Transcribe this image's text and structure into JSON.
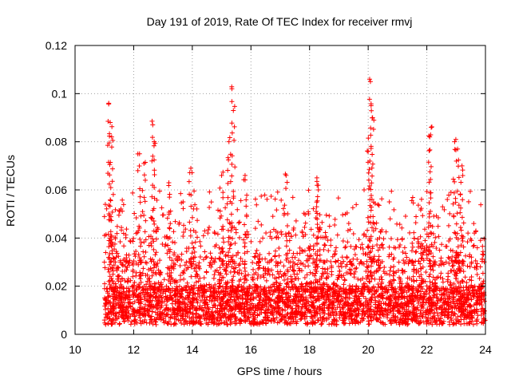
{
  "chart_data": {
    "type": "scatter",
    "title": "Day 191 of 2019, Rate Of TEC Index for receiver rmvj",
    "xlabel": "GPS time / hours",
    "ylabel": "ROTI / TECUs",
    "xlim": [
      10,
      24
    ],
    "ylim": [
      0,
      0.12
    ],
    "xticks": [
      "10",
      "12",
      "14",
      "16",
      "18",
      "20",
      "22",
      "24"
    ],
    "yticks": [
      "0",
      "0.02",
      "0.04",
      "0.06",
      "0.08",
      "0.1",
      "0.12"
    ],
    "grid": true,
    "marker": "+",
    "color": "#ff0000",
    "data_start_hour": 11.0,
    "data_end_hour": 24.0,
    "series": [
      {
        "name": "ROTI",
        "description": "dense scatter of per-satellite ROTI samples; values mostly 0.002-0.03 TECU/s",
        "peaks": [
          {
            "x": 11.15,
            "y": 0.096
          },
          {
            "x": 11.2,
            "y": 0.088
          },
          {
            "x": 11.25,
            "y": 0.082
          },
          {
            "x": 12.2,
            "y": 0.075
          },
          {
            "x": 12.35,
            "y": 0.071
          },
          {
            "x": 12.65,
            "y": 0.087
          },
          {
            "x": 12.7,
            "y": 0.08
          },
          {
            "x": 13.2,
            "y": 0.063
          },
          {
            "x": 13.95,
            "y": 0.069
          },
          {
            "x": 15.0,
            "y": 0.066
          },
          {
            "x": 15.35,
            "y": 0.102
          },
          {
            "x": 15.4,
            "y": 0.093
          },
          {
            "x": 15.25,
            "y": 0.08
          },
          {
            "x": 15.8,
            "y": 0.066
          },
          {
            "x": 17.2,
            "y": 0.066
          },
          {
            "x": 18.25,
            "y": 0.065
          },
          {
            "x": 18.3,
            "y": 0.06
          },
          {
            "x": 20.05,
            "y": 0.106
          },
          {
            "x": 20.1,
            "y": 0.095
          },
          {
            "x": 20.15,
            "y": 0.09
          },
          {
            "x": 20.0,
            "y": 0.076
          },
          {
            "x": 22.15,
            "y": 0.086
          },
          {
            "x": 22.1,
            "y": 0.082
          },
          {
            "x": 22.95,
            "y": 0.08
          },
          {
            "x": 23.05,
            "y": 0.077
          },
          {
            "x": 23.2,
            "y": 0.07
          }
        ]
      }
    ]
  }
}
